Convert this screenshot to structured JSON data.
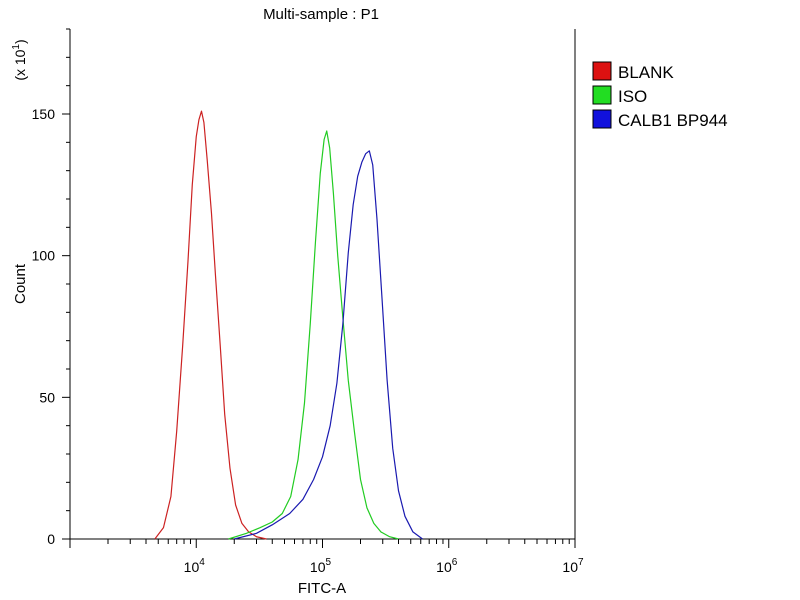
{
  "chart_data": {
    "type": "area",
    "title": "Multi-sample : P1",
    "xlabel": "FITC-A",
    "ylabel": "Count",
    "y_multiplier_label": "(x 10",
    "y_multiplier_exp": "1",
    "y_multiplier_close": ")",
    "x_scale": "log",
    "xlim": [
      1000,
      10000000
    ],
    "ylim": [
      0,
      1800
    ],
    "x_ticks": [
      {
        "value": 10000,
        "base": "10",
        "exp": "4"
      },
      {
        "value": 100000,
        "base": "10",
        "exp": "5"
      },
      {
        "value": 1000000,
        "base": "10",
        "exp": "6"
      },
      {
        "value": 10000000,
        "base": "10",
        "exp": "7"
      }
    ],
    "y_ticks": [
      {
        "value": 0,
        "label": "0"
      },
      {
        "value": 500,
        "label": "50"
      },
      {
        "value": 1000,
        "label": "100"
      },
      {
        "value": 1500,
        "label": "150"
      }
    ],
    "legend_position": "right",
    "grid": false,
    "series": [
      {
        "name": "BLANK",
        "color": "#cc2222",
        "legend_color": "#dd1111",
        "x": [
          4700,
          5500,
          6300,
          7000,
          7800,
          8600,
          9300,
          10000,
          10500,
          11000,
          11500,
          12200,
          13200,
          14200,
          15500,
          16800,
          18500,
          20500,
          23000,
          26000,
          30000,
          36000
        ],
        "y": [
          0,
          40,
          150,
          380,
          680,
          980,
          1250,
          1420,
          1480,
          1510,
          1470,
          1340,
          1150,
          930,
          680,
          440,
          250,
          120,
          55,
          25,
          8,
          0
        ]
      },
      {
        "name": "ISO",
        "color": "#22cc22",
        "legend_color": "#22dd22",
        "x": [
          18000,
          25000,
          32000,
          40000,
          48000,
          56000,
          64000,
          72000,
          80000,
          88000,
          96000,
          103000,
          108000,
          114000,
          122000,
          132000,
          145000,
          160000,
          180000,
          200000,
          225000,
          255000,
          290000,
          340000,
          400000
        ],
        "y": [
          0,
          20,
          40,
          60,
          90,
          150,
          280,
          480,
          760,
          1050,
          1290,
          1410,
          1440,
          1380,
          1220,
          1000,
          780,
          560,
          370,
          210,
          110,
          55,
          25,
          8,
          0
        ]
      },
      {
        "name": "CALB1 BP944",
        "color": "#1a1ab0",
        "legend_color": "#1111dd",
        "x": [
          20000,
          30000,
          40000,
          55000,
          70000,
          85000,
          100000,
          115000,
          130000,
          145000,
          160000,
          175000,
          190000,
          205000,
          220000,
          235000,
          250000,
          270000,
          295000,
          325000,
          360000,
          400000,
          450000,
          520000,
          620000
        ],
        "y": [
          0,
          20,
          50,
          90,
          140,
          210,
          290,
          400,
          550,
          760,
          1010,
          1180,
          1280,
          1330,
          1360,
          1370,
          1320,
          1130,
          860,
          560,
          320,
          170,
          80,
          25,
          0
        ]
      }
    ]
  }
}
